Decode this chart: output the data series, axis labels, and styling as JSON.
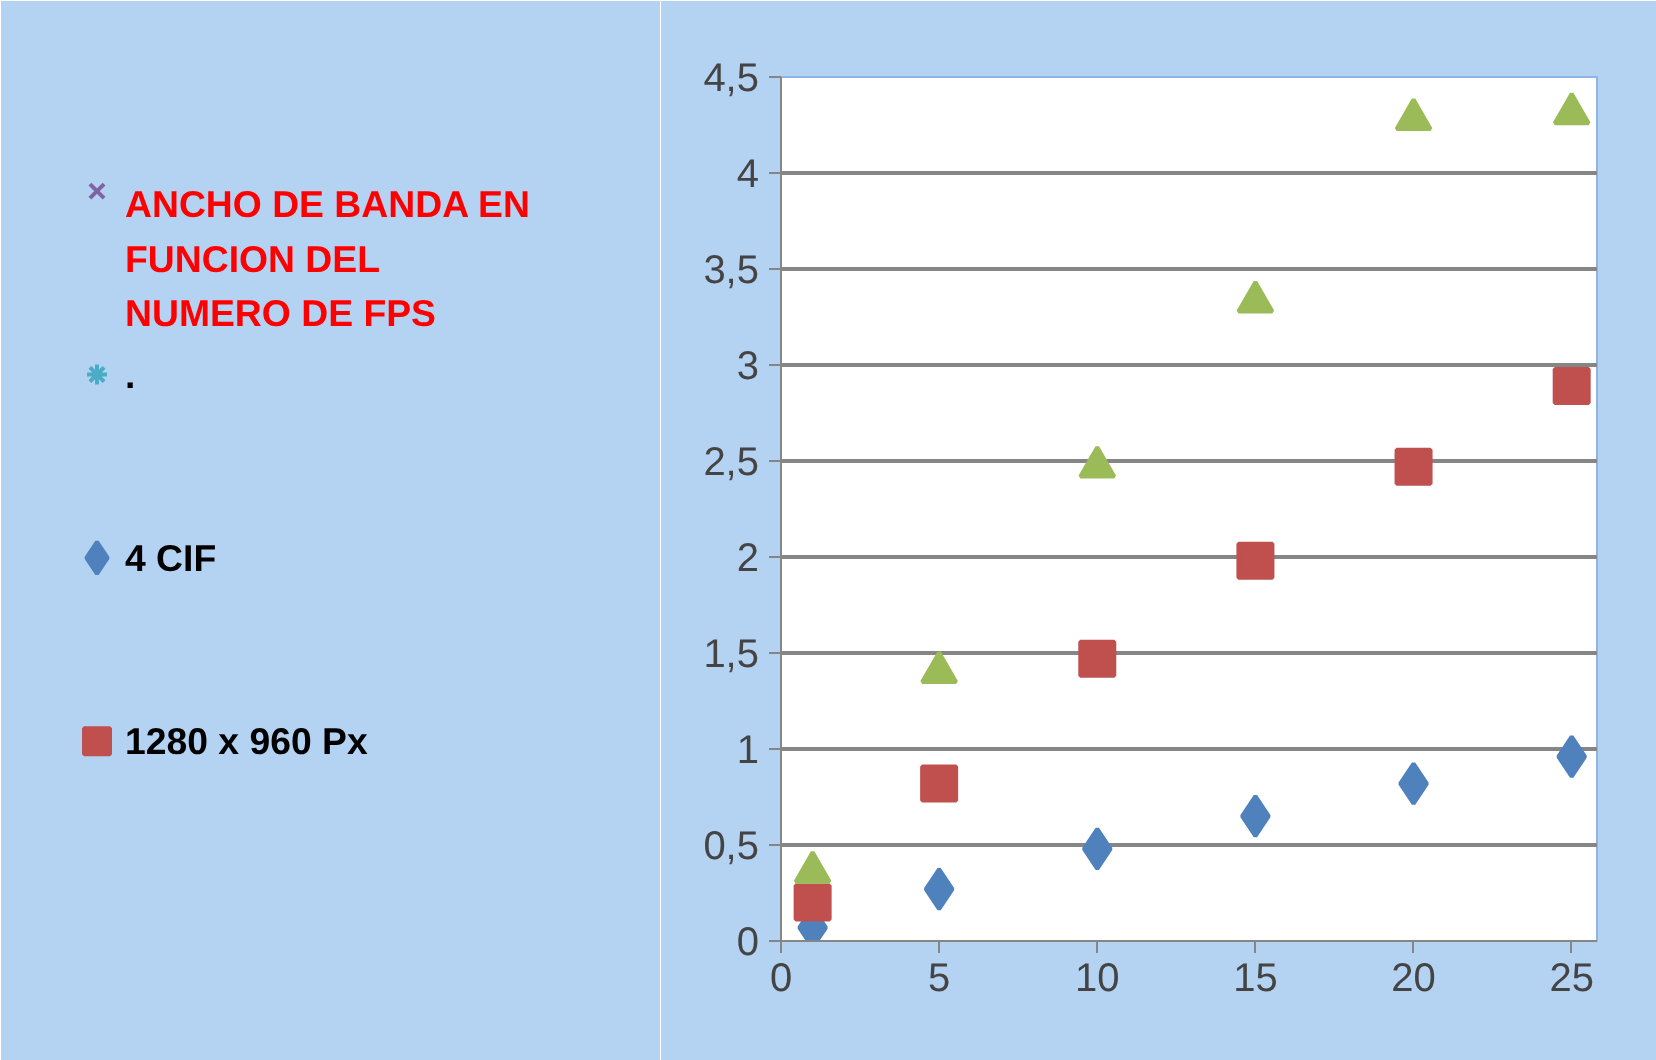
{
  "chart_data": {
    "type": "scatter",
    "x": [
      1,
      5,
      10,
      15,
      20,
      25
    ],
    "xlim": [
      0,
      25.8
    ],
    "xticks": [
      0,
      5,
      10,
      15,
      20,
      25
    ],
    "ylim": [
      0,
      4.5
    ],
    "yticks": [
      0,
      {
        "value": 0.5,
        "label": "0,5"
      },
      1,
      {
        "value": 1.5,
        "label": "1,5"
      },
      2,
      {
        "value": 2.5,
        "label": "2,5"
      },
      3,
      {
        "value": 3.5,
        "label": "3,5"
      },
      4,
      {
        "value": 4.5,
        "label": "4,5"
      }
    ],
    "grid": "y",
    "legend": "left",
    "series": [
      {
        "name": "ANCHO DE BANDA EN FUNCION DEL NUMERO DE FPS",
        "color": "#8064a2",
        "marker": "cross",
        "values": [
          null,
          null,
          null,
          null,
          null,
          null
        ]
      },
      {
        "name": ".",
        "color": "#4bacc6",
        "marker": "star",
        "values": [
          null,
          null,
          null,
          null,
          null,
          null
        ]
      },
      {
        "name": "4 CIF",
        "color": "#4f81bd",
        "marker": "diamond",
        "values": [
          0.07,
          0.27,
          0.48,
          0.65,
          0.82,
          0.96
        ]
      },
      {
        "name": "1280 x 960 Px",
        "color": "#c0504d",
        "marker": "square",
        "values": [
          0.2,
          0.82,
          1.47,
          1.98,
          2.47,
          2.89
        ]
      },
      {
        "color": "#9bbb59",
        "marker": "triangle",
        "values": [
          0.36,
          1.4,
          2.47,
          3.33,
          4.28,
          4.31
        ]
      }
    ]
  }
}
